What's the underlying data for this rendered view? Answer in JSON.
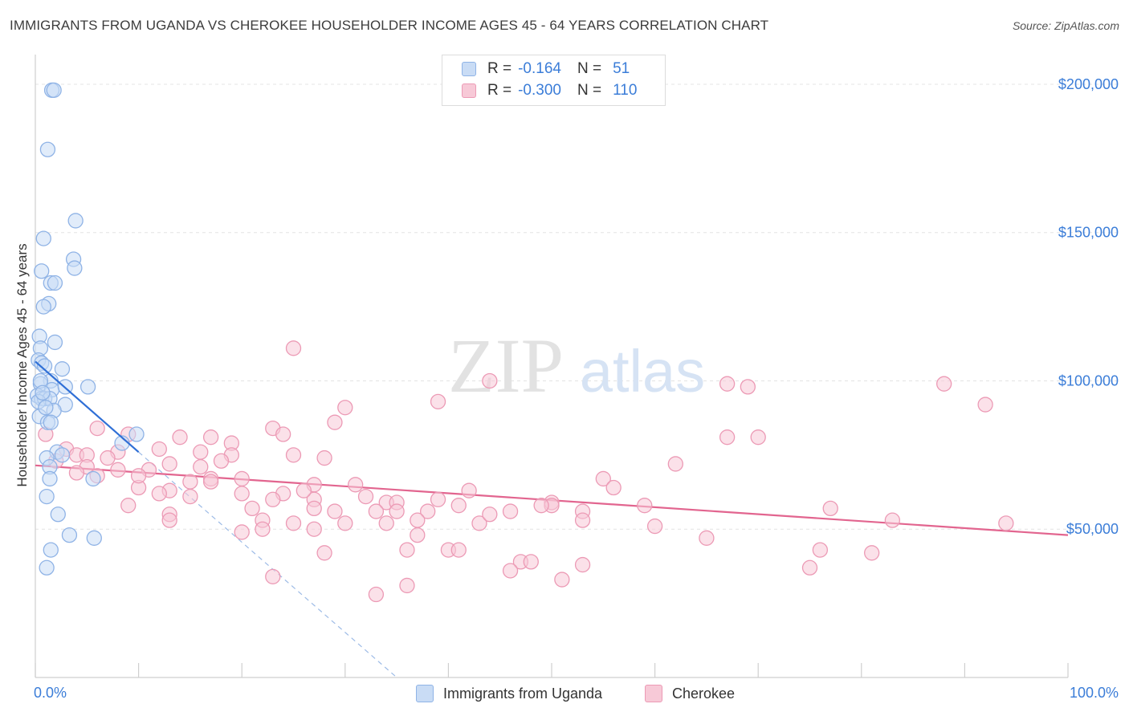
{
  "header": {
    "title": "IMMIGRANTS FROM UGANDA VS CHEROKEE HOUSEHOLDER INCOME AGES 45 - 64 YEARS CORRELATION CHART",
    "source": "Source: ZipAtlas.com"
  },
  "watermark": {
    "zip": "ZIP",
    "atlas": "atlas"
  },
  "legend_top": {
    "rows": [
      {
        "r_label": "R =",
        "r_value": "-0.164",
        "n_label": "N =",
        "n_value": "51"
      },
      {
        "r_label": "R =",
        "r_value": "-0.300",
        "n_label": "N =",
        "n_value": "110"
      }
    ]
  },
  "legend_bottom": {
    "items": [
      {
        "label": "Immigrants from Uganda"
      },
      {
        "label": "Cherokee"
      }
    ]
  },
  "colors": {
    "blue_fill": "#c9dcf5",
    "blue_stroke": "#8fb3e6",
    "blue_line": "#2f6fd6",
    "pink_fill": "#f7c9d7",
    "pink_stroke": "#ec9ab5",
    "pink_line": "#e2658f",
    "axis_text": "#3b7dd8",
    "grid": "#e4e4e4"
  },
  "chart_data": {
    "type": "scatter",
    "title": "IMMIGRANTS FROM UGANDA VS CHEROKEE HOUSEHOLDER INCOME AGES 45 - 64 YEARS CORRELATION CHART",
    "xlabel": "",
    "ylabel": "Householder Income Ages 45 - 64 years",
    "xlim": [
      0,
      100
    ],
    "ylim": [
      0,
      210000
    ],
    "x_tick_labels": [
      "0.0%",
      "100.0%"
    ],
    "y_tick_labels": [
      "$200,000",
      "$150,000",
      "$100,000",
      "$50,000"
    ],
    "y_ticks": [
      200000,
      150000,
      100000,
      50000
    ],
    "series": [
      {
        "name": "Immigrants from Uganda",
        "color": "#8fb3e6",
        "points": [
          [
            1.6,
            198000
          ],
          [
            1.8,
            198000
          ],
          [
            1.2,
            178000
          ],
          [
            3.9,
            154000
          ],
          [
            0.8,
            148000
          ],
          [
            3.7,
            141000
          ],
          [
            3.8,
            138000
          ],
          [
            0.6,
            137000
          ],
          [
            1.5,
            133000
          ],
          [
            1.9,
            133000
          ],
          [
            1.3,
            126000
          ],
          [
            0.8,
            125000
          ],
          [
            0.4,
            115000
          ],
          [
            1.9,
            113000
          ],
          [
            0.5,
            111000
          ],
          [
            0.3,
            107000
          ],
          [
            0.6,
            106000
          ],
          [
            0.9,
            105000
          ],
          [
            2.6,
            104000
          ],
          [
            1.5,
            100000
          ],
          [
            0.5,
            99000
          ],
          [
            1.6,
            97000
          ],
          [
            2.9,
            98000
          ],
          [
            5.1,
            98000
          ],
          [
            0.2,
            95000
          ],
          [
            0.6,
            94000
          ],
          [
            0.9,
            94000
          ],
          [
            1.4,
            94000
          ],
          [
            0.3,
            93000
          ],
          [
            2.9,
            92000
          ],
          [
            1.8,
            90000
          ],
          [
            0.4,
            88000
          ],
          [
            1.2,
            86000
          ],
          [
            1.5,
            86000
          ],
          [
            9.8,
            82000
          ],
          [
            8.4,
            79000
          ],
          [
            2.1,
            76000
          ],
          [
            2.6,
            75000
          ],
          [
            1.1,
            74000
          ],
          [
            1.4,
            71000
          ],
          [
            1.4,
            67000
          ],
          [
            5.6,
            67000
          ],
          [
            1.1,
            61000
          ],
          [
            2.2,
            55000
          ],
          [
            3.3,
            48000
          ],
          [
            5.7,
            47000
          ],
          [
            1.5,
            43000
          ],
          [
            1.1,
            37000
          ],
          [
            0.5,
            100000
          ],
          [
            0.7,
            96000
          ],
          [
            1.0,
            91000
          ]
        ]
      },
      {
        "name": "Cherokee",
        "color": "#ec9ab5",
        "points": [
          [
            25.0,
            111000
          ],
          [
            44.0,
            100000
          ],
          [
            67.0,
            99000
          ],
          [
            88.0,
            99000
          ],
          [
            69.0,
            98000
          ],
          [
            92.0,
            92000
          ],
          [
            30.0,
            91000
          ],
          [
            39.0,
            93000
          ],
          [
            29.0,
            86000
          ],
          [
            23.0,
            84000
          ],
          [
            6.0,
            84000
          ],
          [
            9.0,
            82000
          ],
          [
            24.0,
            82000
          ],
          [
            17.0,
            81000
          ],
          [
            14.0,
            81000
          ],
          [
            67.0,
            81000
          ],
          [
            70.0,
            81000
          ],
          [
            1.0,
            82000
          ],
          [
            19.0,
            79000
          ],
          [
            3.0,
            77000
          ],
          [
            12.0,
            77000
          ],
          [
            8.0,
            76000
          ],
          [
            16.0,
            76000
          ],
          [
            4.0,
            75000
          ],
          [
            5.0,
            75000
          ],
          [
            19.0,
            75000
          ],
          [
            25.0,
            75000
          ],
          [
            28.0,
            74000
          ],
          [
            7.0,
            74000
          ],
          [
            2.0,
            73000
          ],
          [
            13.0,
            72000
          ],
          [
            16.0,
            71000
          ],
          [
            62.0,
            72000
          ],
          [
            5.0,
            71000
          ],
          [
            8.0,
            70000
          ],
          [
            11.0,
            70000
          ],
          [
            4.0,
            69000
          ],
          [
            6.0,
            68000
          ],
          [
            17.0,
            67000
          ],
          [
            20.0,
            67000
          ],
          [
            55.0,
            67000
          ],
          [
            15.0,
            66000
          ],
          [
            17.0,
            66000
          ],
          [
            31.0,
            65000
          ],
          [
            27.0,
            65000
          ],
          [
            56.0,
            64000
          ],
          [
            10.0,
            64000
          ],
          [
            13.0,
            63000
          ],
          [
            42.0,
            63000
          ],
          [
            20.0,
            62000
          ],
          [
            24.0,
            62000
          ],
          [
            15.0,
            61000
          ],
          [
            23.0,
            60000
          ],
          [
            27.0,
            60000
          ],
          [
            39.0,
            60000
          ],
          [
            34.0,
            59000
          ],
          [
            35.0,
            59000
          ],
          [
            50.0,
            59000
          ],
          [
            50.0,
            58000
          ],
          [
            59.0,
            58000
          ],
          [
            27.0,
            57000
          ],
          [
            21.0,
            57000
          ],
          [
            35.0,
            56000
          ],
          [
            38.0,
            56000
          ],
          [
            46.0,
            56000
          ],
          [
            53.0,
            56000
          ],
          [
            29.0,
            56000
          ],
          [
            33.0,
            56000
          ],
          [
            77.0,
            57000
          ],
          [
            13.0,
            55000
          ],
          [
            22.0,
            53000
          ],
          [
            25.0,
            52000
          ],
          [
            30.0,
            52000
          ],
          [
            34.0,
            52000
          ],
          [
            43.0,
            52000
          ],
          [
            53.0,
            53000
          ],
          [
            37.0,
            53000
          ],
          [
            60.0,
            51000
          ],
          [
            22.0,
            50000
          ],
          [
            27.0,
            50000
          ],
          [
            13.0,
            53000
          ],
          [
            20.0,
            49000
          ],
          [
            37.0,
            48000
          ],
          [
            65.0,
            47000
          ],
          [
            83.0,
            53000
          ],
          [
            94.0,
            52000
          ],
          [
            40.0,
            43000
          ],
          [
            41.0,
            43000
          ],
          [
            28.0,
            42000
          ],
          [
            36.0,
            43000
          ],
          [
            76.0,
            43000
          ],
          [
            81.0,
            42000
          ],
          [
            47.0,
            39000
          ],
          [
            48.0,
            39000
          ],
          [
            53.0,
            38000
          ],
          [
            46.0,
            36000
          ],
          [
            75.0,
            37000
          ],
          [
            23.0,
            34000
          ],
          [
            51.0,
            33000
          ],
          [
            36.0,
            31000
          ],
          [
            33.0,
            28000
          ],
          [
            10.0,
            68000
          ],
          [
            18.0,
            73000
          ],
          [
            9.0,
            58000
          ],
          [
            26.0,
            63000
          ],
          [
            32.0,
            61000
          ],
          [
            41.0,
            58000
          ],
          [
            49.0,
            58000
          ],
          [
            12.0,
            62000
          ],
          [
            44.0,
            55000
          ]
        ]
      }
    ],
    "trend_lines": [
      {
        "series": "Immigrants from Uganda",
        "solid": [
          [
            0,
            106500
          ],
          [
            10,
            76000
          ]
        ],
        "dashed": [
          [
            10,
            76000
          ],
          [
            35,
            0
          ]
        ]
      },
      {
        "series": "Cherokee",
        "solid": [
          [
            0,
            71500
          ],
          [
            100,
            48000
          ]
        ]
      }
    ]
  }
}
